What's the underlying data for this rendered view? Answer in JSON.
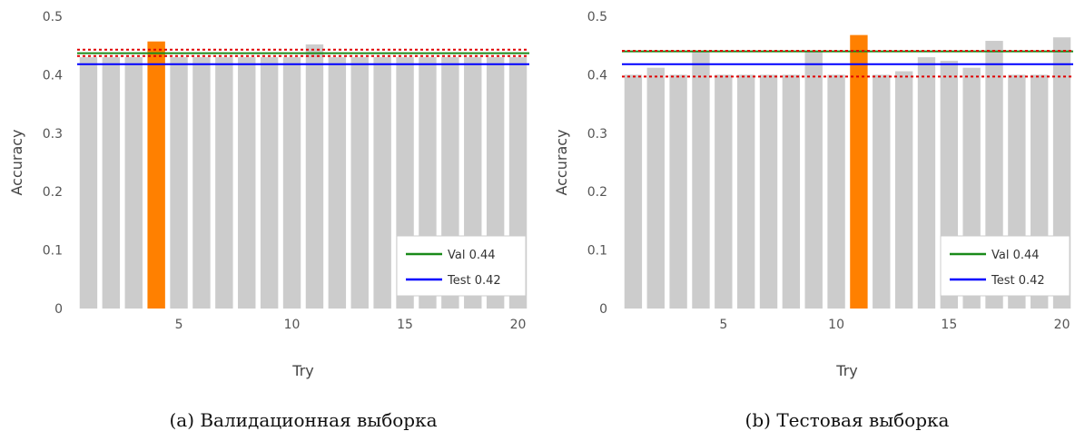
{
  "chart_data": [
    {
      "type": "bar",
      "caption": "(a) Валидационная выборка",
      "xlabel": "Try",
      "ylabel": "Accuracy",
      "ylim": [
        0,
        0.5
      ],
      "yticks": [
        "0",
        "0.1",
        "0.2",
        "0.3",
        "0.4",
        "0.5"
      ],
      "xticks": [
        "5",
        "10",
        "15",
        "20"
      ],
      "xtick_values": [
        5,
        10,
        15,
        20
      ],
      "x": [
        1,
        2,
        3,
        4,
        5,
        6,
        7,
        8,
        9,
        10,
        11,
        12,
        13,
        14,
        15,
        16,
        17,
        18,
        19,
        20
      ],
      "values": [
        0.43,
        0.43,
        0.43,
        0.457,
        0.43,
        0.43,
        0.43,
        0.43,
        0.43,
        0.43,
        0.452,
        0.43,
        0.43,
        0.43,
        0.43,
        0.43,
        0.43,
        0.43,
        0.43,
        0.43
      ],
      "highlight_index": 3,
      "bar_color": "#cccccc",
      "highlight_color": "#ff8000",
      "ref_lines": [
        {
          "value": 0.437,
          "color": "#1a8a1a",
          "style": "solid",
          "legend": "Val 0.44"
        },
        {
          "value": 0.418,
          "color": "#0000ff",
          "style": "solid",
          "legend": "Test 0.42"
        },
        {
          "value": 0.443,
          "color": "#e00000",
          "style": "dotted",
          "legend": ""
        },
        {
          "value": 0.432,
          "color": "#e00000",
          "style": "dotted",
          "legend": ""
        }
      ],
      "legend_position": "bottom-right",
      "grid": false
    },
    {
      "type": "bar",
      "caption": "(b) Тестовая выборка",
      "xlabel": "Try",
      "ylabel": "Accuracy",
      "ylim": [
        0,
        0.5
      ],
      "yticks": [
        "0",
        "0.1",
        "0.2",
        "0.3",
        "0.4",
        "0.5"
      ],
      "xticks": [
        "5",
        "10",
        "15",
        "20"
      ],
      "xtick_values": [
        5,
        10,
        15,
        20
      ],
      "x": [
        1,
        2,
        3,
        4,
        5,
        6,
        7,
        8,
        9,
        10,
        11,
        12,
        13,
        14,
        15,
        16,
        17,
        18,
        19,
        20
      ],
      "values": [
        0.4,
        0.412,
        0.4,
        0.44,
        0.4,
        0.4,
        0.4,
        0.4,
        0.44,
        0.4,
        0.468,
        0.4,
        0.406,
        0.43,
        0.424,
        0.412,
        0.458,
        0.4,
        0.4,
        0.464
      ],
      "highlight_index": 10,
      "bar_color": "#cccccc",
      "highlight_color": "#ff8000",
      "ref_lines": [
        {
          "value": 0.44,
          "color": "#1a8a1a",
          "style": "solid",
          "legend": "Val 0.44"
        },
        {
          "value": 0.418,
          "color": "#0000ff",
          "style": "solid",
          "legend": "Test 0.42"
        },
        {
          "value": 0.441,
          "color": "#e00000",
          "style": "dotted",
          "legend": ""
        },
        {
          "value": 0.397,
          "color": "#e00000",
          "style": "dotted",
          "legend": ""
        }
      ],
      "legend_position": "bottom-right",
      "grid": false
    }
  ]
}
